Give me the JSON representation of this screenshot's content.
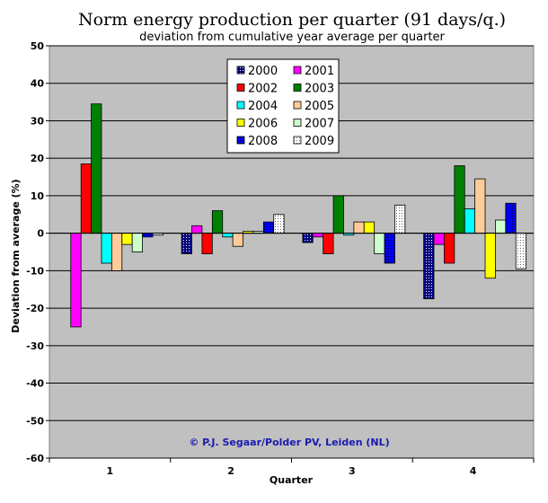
{
  "chart_data": {
    "type": "bar",
    "title": "Norm energy production per quarter (91 days/q.)",
    "subtitle": "deviation from cumulative year average per quarter",
    "xlabel": "Quarter",
    "ylabel": "Deviation from average (%)",
    "ylim": [
      -60,
      50
    ],
    "ytick_step": 10,
    "grid": true,
    "legend_position": "top-center",
    "credit": "© P.J. Segaar/Polder PV, Leiden (NL)",
    "categories": [
      "1",
      "2",
      "3",
      "4"
    ],
    "series": [
      {
        "name": "2000",
        "color": "#000080",
        "pattern": "dots",
        "values": [
          null,
          -5.5,
          -2.5,
          -17.5
        ]
      },
      {
        "name": "2001",
        "color": "#ff00ff",
        "pattern": "solid",
        "values": [
          -25,
          2,
          -1,
          -3
        ]
      },
      {
        "name": "2002",
        "color": "#ff0000",
        "pattern": "solid",
        "values": [
          18.5,
          -5.5,
          -5.5,
          -8
        ]
      },
      {
        "name": "2003",
        "color": "#008000",
        "pattern": "solid",
        "values": [
          34.5,
          6,
          10,
          18
        ]
      },
      {
        "name": "2004",
        "color": "#00ffff",
        "pattern": "solid",
        "values": [
          -8,
          -1,
          -0.5,
          6.5
        ]
      },
      {
        "name": "2005",
        "color": "#ffcc99",
        "pattern": "solid",
        "values": [
          -10,
          -3.5,
          3,
          14.5
        ]
      },
      {
        "name": "2006",
        "color": "#ffff00",
        "pattern": "solid",
        "values": [
          -3,
          0.5,
          3,
          -12
        ]
      },
      {
        "name": "2007",
        "color": "#ccffcc",
        "pattern": "solid",
        "values": [
          -5,
          0.5,
          -5.5,
          3.5
        ]
      },
      {
        "name": "2008",
        "color": "#0000ff",
        "pattern": "dots",
        "values": [
          -1,
          3,
          -8,
          8
        ]
      },
      {
        "name": "2009",
        "color": "#ffffff",
        "pattern": "dots",
        "values": [
          -0.5,
          5,
          7.5,
          -9.5
        ]
      }
    ]
  }
}
